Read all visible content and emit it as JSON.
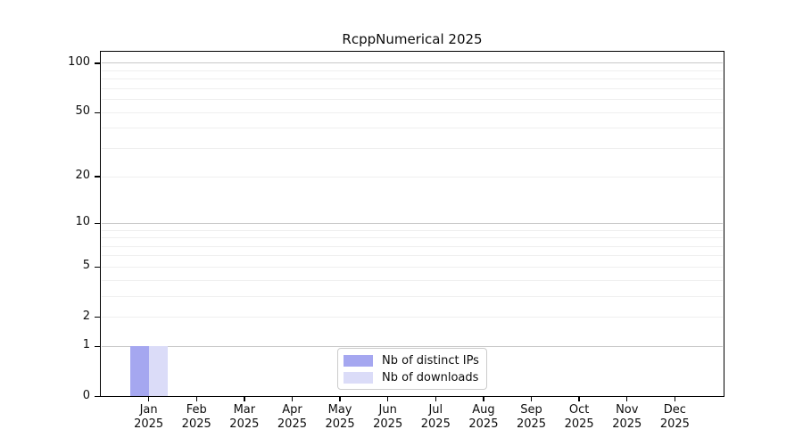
{
  "chart_data": {
    "type": "bar",
    "title": "RcppNumerical 2025",
    "x_months": [
      "Jan",
      "Feb",
      "Mar",
      "Apr",
      "May",
      "Jun",
      "Jul",
      "Aug",
      "Sep",
      "Oct",
      "Nov",
      "Dec"
    ],
    "x_year": "2025",
    "y_scale": "log1p",
    "y_ticks": [
      0,
      1,
      2,
      5,
      10,
      20,
      50,
      100
    ],
    "y_top_value": 117.5,
    "grid_major": [
      1,
      10,
      100
    ],
    "grid_minor": [
      2,
      3,
      4,
      5,
      6,
      7,
      8,
      9,
      20,
      30,
      40,
      50,
      60,
      70,
      80,
      90
    ],
    "grid_on": true,
    "legend_position": "bottom-center",
    "series": [
      {
        "name": "Nb of distinct IPs",
        "color": "#a5a7f0",
        "values": [
          1,
          0,
          0,
          0,
          0,
          0,
          0,
          0,
          0,
          0,
          0,
          0
        ]
      },
      {
        "name": "Nb of downloads",
        "color": "#dbdcf8",
        "values": [
          1,
          0,
          0,
          0,
          0,
          0,
          0,
          0,
          0,
          0,
          0,
          0
        ]
      }
    ],
    "colors": {
      "grid_major": "#c8c8c8",
      "grid_minor": "#efefef",
      "frame": "#000000",
      "background": "#ffffff"
    }
  }
}
